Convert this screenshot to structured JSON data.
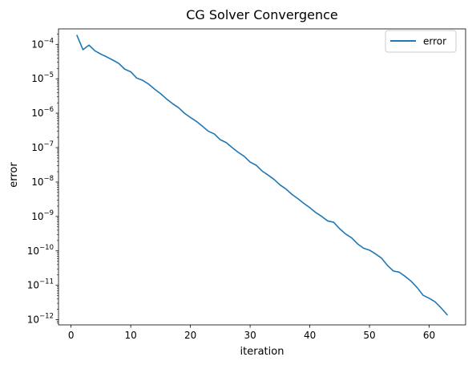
{
  "chart_data": {
    "type": "line",
    "title": "CG Solver Convergence",
    "xlabel": "iteration",
    "ylabel": "error",
    "xlim": [
      -2.1,
      66.1
    ],
    "ylim_log10": [
      -12.15,
      -3.55
    ],
    "y_scale": "log",
    "grid": false,
    "legend_position": "top-right",
    "x_ticks": [
      0,
      10,
      20,
      30,
      40,
      50,
      60
    ],
    "x_tick_labels": [
      "0",
      "10",
      "20",
      "30",
      "40",
      "50",
      "60"
    ],
    "y_ticks_log10": [
      -12,
      -11,
      -10,
      -9,
      -8,
      -7,
      -6,
      -5,
      -4
    ],
    "y_tick_bases": [
      "10",
      "10",
      "10",
      "10",
      "10",
      "10",
      "10",
      "10",
      "10"
    ],
    "y_tick_exponents": [
      "−12",
      "−11",
      "−10",
      "−9",
      "−8",
      "−7",
      "−6",
      "−5",
      "−4"
    ],
    "series": [
      {
        "name": "error",
        "color": "#1f77b4",
        "x": [
          1,
          2,
          3,
          4,
          5,
          6,
          7,
          8,
          9,
          10,
          11,
          12,
          13,
          14,
          15,
          16,
          17,
          18,
          19,
          20,
          21,
          22,
          23,
          24,
          25,
          26,
          27,
          28,
          29,
          30,
          31,
          32,
          33,
          34,
          35,
          36,
          37,
          38,
          39,
          40,
          41,
          42,
          43,
          44,
          45,
          46,
          47,
          48,
          49,
          50,
          51,
          52,
          53,
          54,
          55,
          56,
          57,
          58,
          59,
          60,
          61,
          62,
          63
        ],
        "y": [
          0.00018,
          7e-05,
          9.5e-05,
          6.5e-05,
          5.2e-05,
          4.3e-05,
          3.5e-05,
          2.8e-05,
          1.9e-05,
          1.6e-05,
          1.05e-05,
          9e-06,
          7e-06,
          5e-06,
          3.7e-06,
          2.6e-06,
          1.9e-06,
          1.45e-06,
          1e-06,
          7.5e-07,
          5.8e-07,
          4.2e-07,
          3e-07,
          2.5e-07,
          1.7e-07,
          1.4e-07,
          1e-07,
          7.3e-08,
          5.6e-08,
          3.8e-08,
          3.1e-08,
          2.1e-08,
          1.6e-08,
          1.2e-08,
          8.3e-09,
          6.3e-09,
          4.4e-09,
          3.3e-09,
          2.4e-09,
          1.8e-09,
          1.3e-09,
          1e-09,
          7.4e-10,
          6.8e-10,
          4.4e-10,
          3.1e-10,
          2.4e-10,
          1.6e-10,
          1.2e-10,
          1.05e-10,
          8.2e-11,
          6.2e-11,
          3.8e-11,
          2.6e-11,
          2.4e-11,
          1.8e-11,
          1.3e-11,
          8.5e-12,
          5.1e-12,
          4.2e-12,
          3.3e-12,
          2.2e-12,
          1.4e-12
        ]
      }
    ]
  }
}
